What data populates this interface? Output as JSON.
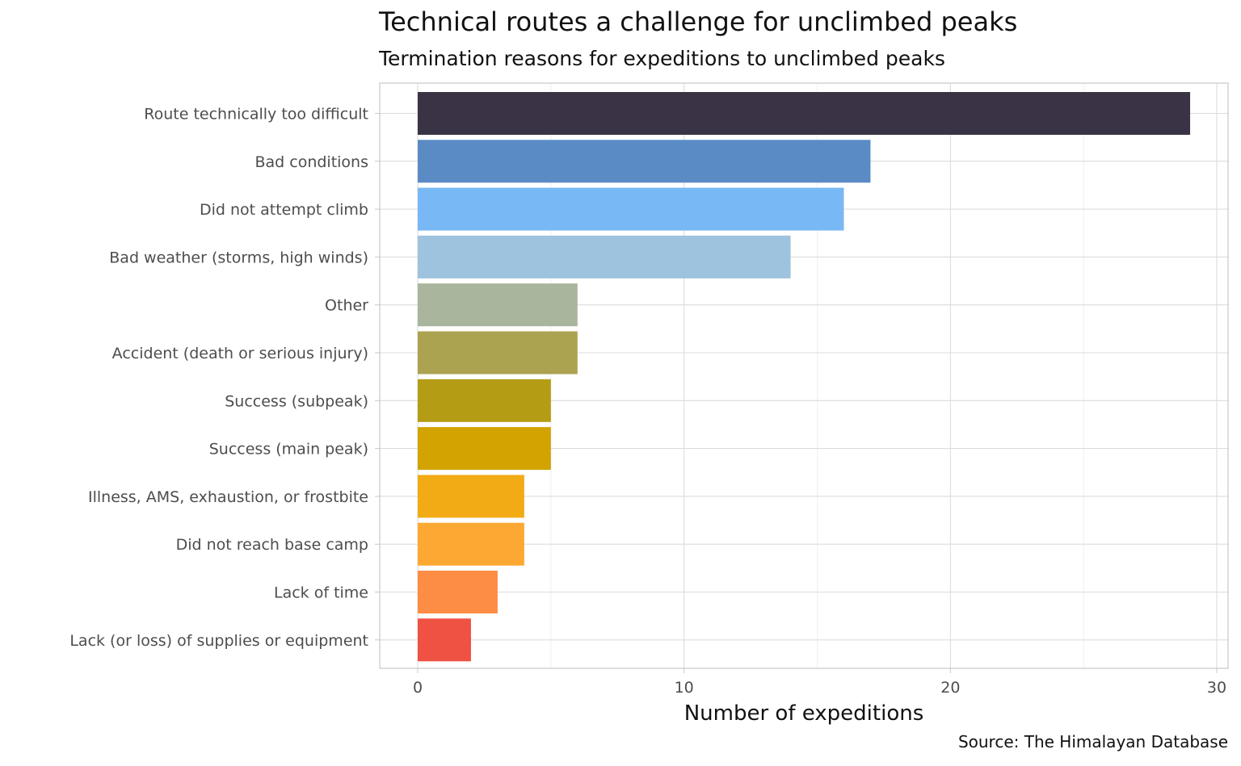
{
  "chart_data": {
    "type": "bar",
    "orientation": "horizontal",
    "title": "Technical routes a challenge for unclimbed peaks",
    "subtitle": "Termination reasons for expeditions to unclimbed peaks",
    "xlabel": "Number of expeditions",
    "ylabel": "",
    "caption": "Source: The Himalayan Database",
    "xlim": [
      0,
      30
    ],
    "x_ticks": [
      0,
      10,
      20,
      30
    ],
    "grid": true,
    "categories": [
      "Route technically too difficult",
      "Bad conditions",
      "Did not attempt climb",
      "Bad weather (storms, high winds)",
      "Other",
      "Accident (death or serious injury)",
      "Success (subpeak)",
      "Success (main peak)",
      "Illness, AMS, exhaustion, or frostbite",
      "Did not reach base camp",
      "Lack of time",
      "Lack (or loss) of supplies or equipment"
    ],
    "values": [
      29,
      17,
      16,
      14,
      6,
      6,
      5,
      5,
      4,
      4,
      3,
      2
    ],
    "colors": [
      "#3a3345",
      "#5a8bc4",
      "#78b8f5",
      "#9dc3de",
      "#a9b59d",
      "#aba350",
      "#b59c15",
      "#d2a301",
      "#f2ab14",
      "#fda833",
      "#fd8c44",
      "#ef5143"
    ]
  }
}
